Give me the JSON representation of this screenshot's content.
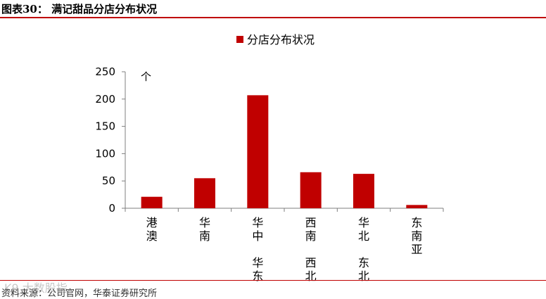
{
  "header": {
    "title": "图表30：  满记甜品分店分布状况"
  },
  "footer": {
    "source": "资料来源：公司官网，华泰证券研究所",
    "watermark": "K9 大数股指"
  },
  "chart_data": {
    "type": "bar",
    "title": "",
    "legend": {
      "label": "分店分布状况",
      "position": "top-center"
    },
    "unit_label": "个",
    "xlabel": "",
    "ylabel": "",
    "categories": [
      [
        "港",
        "澳"
      ],
      [
        "华",
        "南"
      ],
      [
        "华",
        "中",
        "",
        "华",
        "东"
      ],
      [
        "西",
        "南",
        "",
        "西",
        "北"
      ],
      [
        "华",
        "北",
        "",
        "东",
        "北"
      ],
      [
        "东",
        "南",
        "亚"
      ]
    ],
    "values": [
      21,
      55,
      207,
      66,
      63,
      6
    ],
    "ylim": [
      0,
      250
    ],
    "yticks": [
      0,
      50,
      100,
      150,
      200,
      250
    ],
    "bar_color": "#c00000",
    "grid": false
  }
}
